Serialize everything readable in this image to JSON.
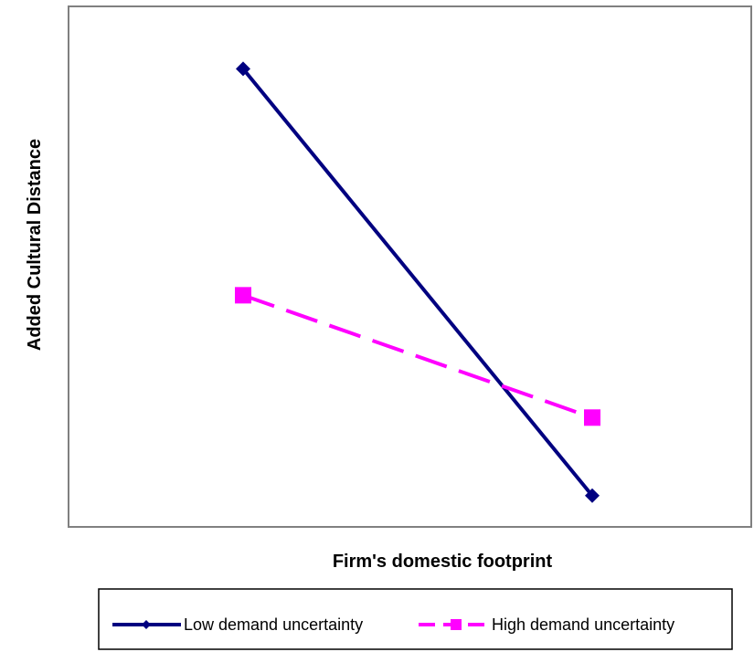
{
  "chart_data": {
    "type": "line",
    "title": "",
    "xlabel": "Firm's domestic footprint",
    "ylabel": "Added Cultural Distance",
    "x_ticks_shown": false,
    "y_ticks_shown": false,
    "grid": false,
    "ylim": [
      0,
      100
    ],
    "legend_position": "bottom",
    "series": [
      {
        "name": "Low demand uncertainty",
        "color": "#000080",
        "line_style": "solid",
        "marker": "diamond",
        "points": [
          {
            "x": 1,
            "y": 88
          },
          {
            "x": 2,
            "y": 6
          }
        ]
      },
      {
        "name": "High demand uncertainty",
        "color": "#ff00ff",
        "line_style": "dashed",
        "marker": "square",
        "points": [
          {
            "x": 1,
            "y": 44.5
          },
          {
            "x": 2,
            "y": 21
          }
        ]
      }
    ]
  }
}
